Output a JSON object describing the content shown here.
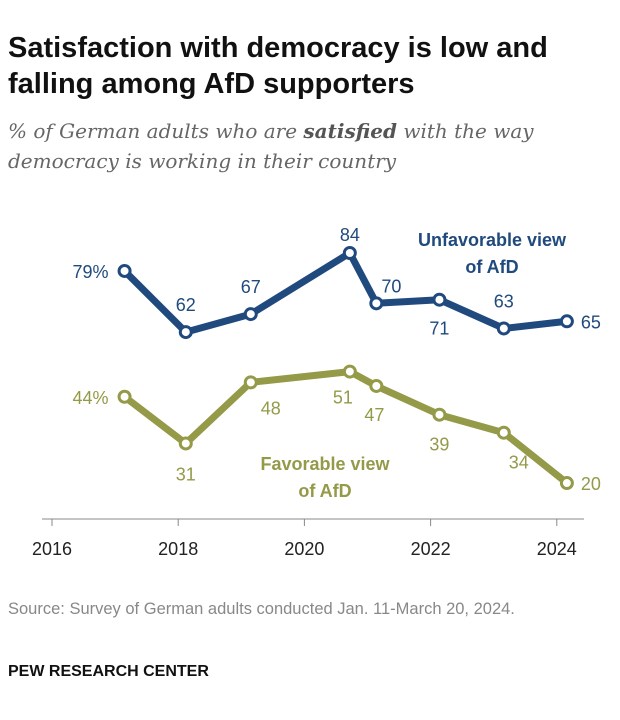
{
  "title": "Satisfaction with democracy is low and falling among AfD supporters",
  "subtitle": {
    "before": "% of German adults who are ",
    "emphasis": "satisfied",
    "after": " with the way democracy is working in their country"
  },
  "source": "Source: Survey of German adults conducted Jan. 11-March 20, 2024.",
  "brand": "PEW RESEARCH CENTER",
  "chart_data": {
    "type": "line",
    "title": "Satisfaction with democracy is low and falling among AfD supporters",
    "xlabel": "",
    "ylabel": "",
    "xticks": [
      "2016",
      "2018",
      "2020",
      "2022",
      "2024"
    ],
    "xlim": [
      2016,
      2024.5
    ],
    "ylim": [
      10,
      90
    ],
    "grid": false,
    "x": [
      2017.15,
      2018.12,
      2019.15,
      2020.72,
      2021.14,
      2022.14,
      2023.16,
      2024.16
    ],
    "series": [
      {
        "name": "Unfavorable view of AfD",
        "name_lines": [
          "Unfavorable view",
          "of AfD"
        ],
        "color": "#204a7e",
        "values": [
          79,
          62,
          67,
          84,
          70,
          71,
          63,
          65
        ],
        "labels": [
          "79%",
          "62",
          "67",
          "84",
          "70",
          "71",
          "63",
          "65"
        ]
      },
      {
        "name": "Favorable view of AfD",
        "name_lines": [
          "Favorable view",
          "of AfD"
        ],
        "color": "#949a48",
        "values": [
          44,
          31,
          48,
          51,
          47,
          39,
          34,
          20
        ],
        "labels": [
          "44%",
          "31",
          "48",
          "51",
          "47",
          "39",
          "34",
          "20"
        ]
      }
    ]
  }
}
